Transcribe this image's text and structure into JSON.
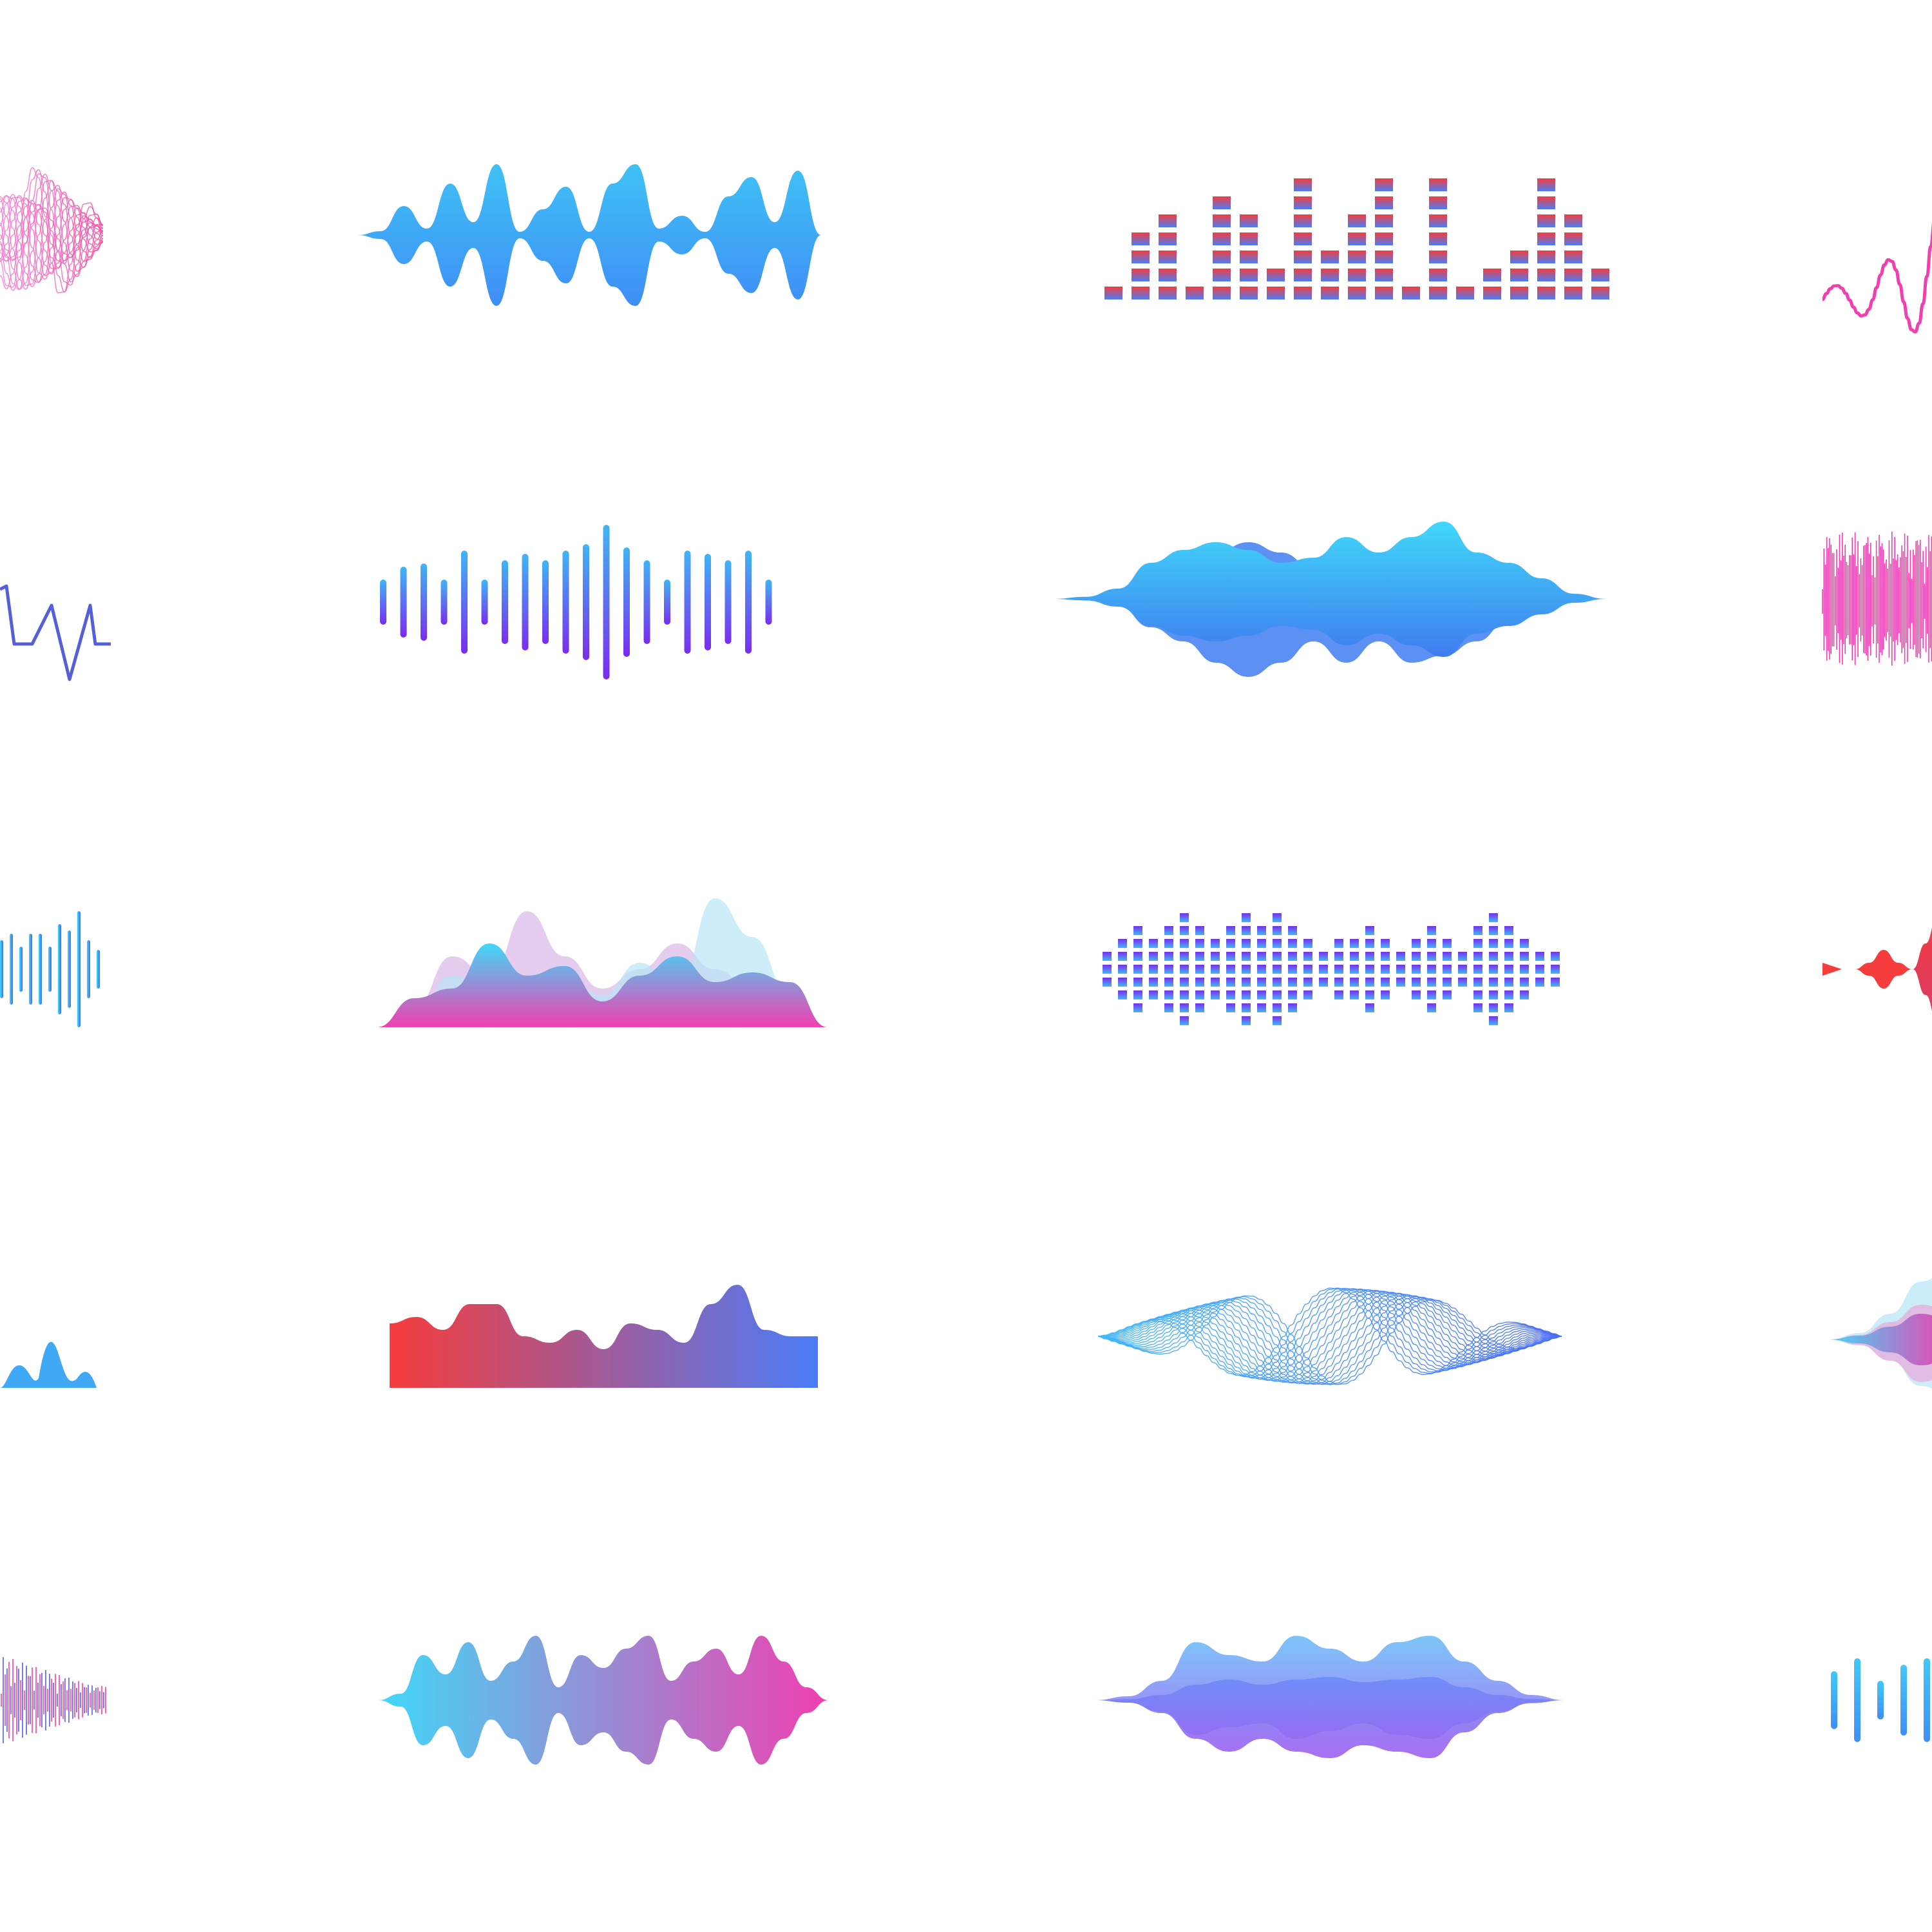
{
  "colors": {
    "background": "#ffffff",
    "sky": "#3fa9f5",
    "cyan": "#40d8f8",
    "violet": "#7a2cf0",
    "purple": "#9b6cf5",
    "pink": "#f040b0",
    "red": "#f63c3c",
    "blue": "#4a7cf8",
    "navy": "#5560d8"
  },
  "grid": {
    "rows": 5,
    "columns": 4
  },
  "icons": [
    {
      "name": "line-bundle-wave-icon",
      "style": "line-bundle",
      "colors": [
        "#f090e0",
        "#f04fa0"
      ]
    },
    {
      "name": "smooth-mirrored-wave-icon",
      "style": "mirrored-smooth",
      "colors": [
        "#3fc2f5",
        "#3f8ef5"
      ]
    },
    {
      "name": "equalizer-bars-icon",
      "style": "stacked-equalizer",
      "colors": [
        "#f63c3c",
        "#4a7cf8"
      ]
    },
    {
      "name": "sine-line-wave-icon",
      "style": "single-line",
      "colors": [
        "#f040b0"
      ]
    },
    {
      "name": "zigzag-line-wave-icon",
      "style": "single-line",
      "colors": [
        "#5560d8"
      ]
    },
    {
      "name": "vertical-bars-wave-icon",
      "style": "rounded-bars",
      "colors": [
        "#3fb5f5",
        "#7a2cf0"
      ]
    },
    {
      "name": "layered-blob-wave-icon",
      "style": "layered-mirrored",
      "colors": [
        "#40d8f8",
        "#3f7cf0"
      ]
    },
    {
      "name": "dense-spike-wave-icon",
      "style": "spikes",
      "colors": [
        "#f040b0"
      ]
    },
    {
      "name": "thin-bars-wave-icon",
      "style": "rounded-bars",
      "colors": [
        "#40d8f8",
        "#3f6cf5"
      ]
    },
    {
      "name": "mountain-area-wave-icon",
      "style": "area-layers",
      "colors": [
        "#40d8f8",
        "#f040b0"
      ]
    },
    {
      "name": "pixel-equalizer-icon",
      "style": "mirrored-equalizer",
      "colors": [
        "#7a2cf0",
        "#40b8f8"
      ]
    },
    {
      "name": "pulse-blob-wave-icon",
      "style": "mirrored-smooth",
      "colors": [
        "#f63c3c",
        "#d63c6c"
      ]
    },
    {
      "name": "small-hills-wave-icon",
      "style": "area",
      "colors": [
        "#3fa9f5"
      ]
    },
    {
      "name": "gradient-hills-wave-icon",
      "style": "area-block",
      "colors": [
        "#f63c3c",
        "#4a7cf8"
      ]
    },
    {
      "name": "ribbon-line-wave-icon",
      "style": "line-bundle",
      "colors": [
        "#40b8f8",
        "#4a6cf5"
      ]
    },
    {
      "name": "overlapping-blob-wave-icon",
      "style": "layered-mirrored",
      "colors": [
        "#40d8f8",
        "#f040b0"
      ]
    },
    {
      "name": "spike-line-wave-icon",
      "style": "spikes",
      "colors": [
        "#f040b0",
        "#5560d8"
      ]
    },
    {
      "name": "gradient-mirrored-wave-icon",
      "style": "mirrored-smooth",
      "colors": [
        "#40d8f8",
        "#f040b0"
      ]
    },
    {
      "name": "soft-layered-wave-icon",
      "style": "layered-mirrored",
      "colors": [
        "#6ec0f8",
        "#9b6cf5"
      ]
    },
    {
      "name": "short-bars-wave-icon",
      "style": "rounded-bars",
      "colors": [
        "#40c8f8",
        "#3f8ef5"
      ]
    }
  ]
}
